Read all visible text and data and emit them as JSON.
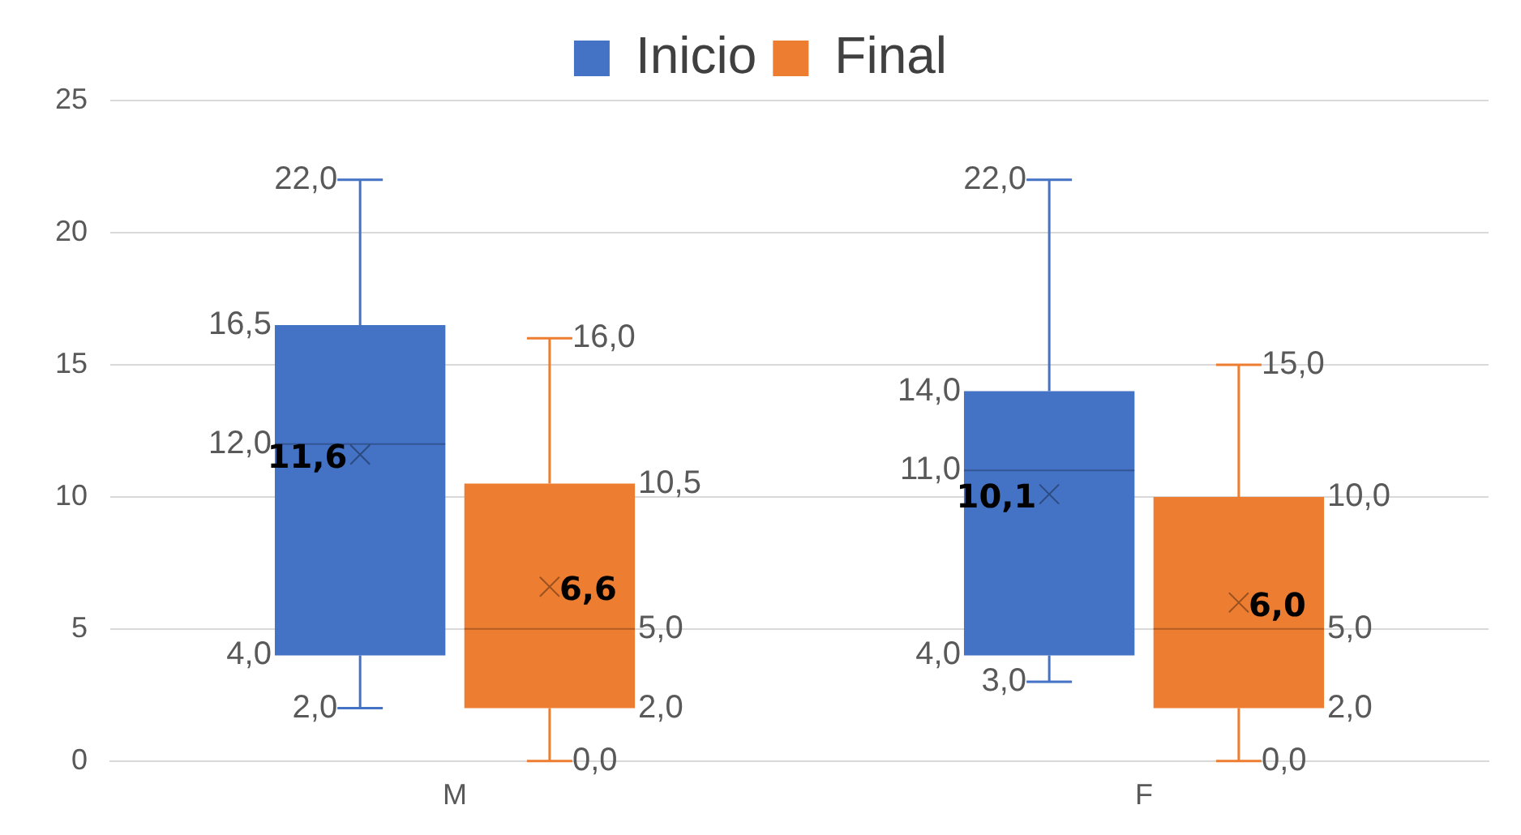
{
  "chart_data": {
    "type": "box",
    "categories": [
      "M",
      "F"
    ],
    "series": [
      {
        "name": "Inicio",
        "color": "#4472c4",
        "boxes": [
          {
            "low": 2,
            "q1": 4,
            "median": 12,
            "q3": 16.5,
            "high": 22,
            "mean": 11.6
          },
          {
            "low": 3,
            "q1": 4,
            "median": 11,
            "q3": 14,
            "high": 22,
            "mean": 10.1
          }
        ],
        "value_labels": [
          [
            "22,0",
            "16,5",
            "12,0",
            "4,0",
            "2,0",
            "11,6"
          ],
          [
            "22,0",
            "14,0",
            "11,0",
            "4,0",
            "3,0",
            "10,1"
          ]
        ]
      },
      {
        "name": "Final",
        "color": "#ed7d31",
        "boxes": [
          {
            "low": 0,
            "q1": 2,
            "median": 5,
            "q3": 10.5,
            "high": 16,
            "mean": 6.6
          },
          {
            "low": 0,
            "q1": 2,
            "median": 5,
            "q3": 10,
            "high": 15,
            "mean": 6.0
          }
        ],
        "value_labels": [
          [
            "16,0",
            "10,5",
            "5,0",
            "2,0",
            "0,0",
            "6,6"
          ],
          [
            "15,0",
            "10,0",
            "5,0",
            "2,0",
            "0,0",
            "6,0"
          ]
        ]
      }
    ],
    "ylim": [
      0,
      25
    ],
    "yticks": [
      0,
      5,
      10,
      15,
      20,
      25
    ],
    "grid": "y",
    "legend": "top",
    "data_labels": true
  }
}
